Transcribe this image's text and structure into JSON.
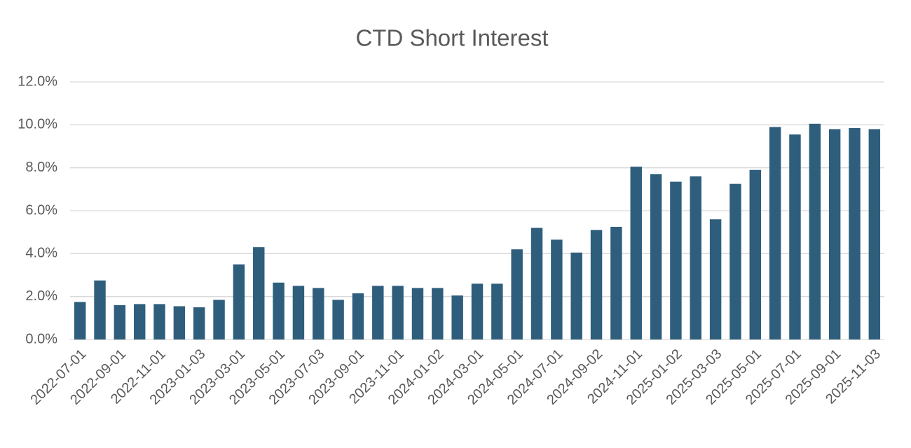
{
  "chart_data": {
    "type": "bar",
    "title": "CTD Short Interest",
    "categories": [
      "2022-07-01",
      null,
      "2022-09-01",
      null,
      "2022-11-01",
      null,
      "2023-01-03",
      null,
      "2023-03-01",
      null,
      "2023-05-01",
      null,
      "2023-07-03",
      null,
      "2023-09-01",
      null,
      "2023-11-01",
      null,
      "2024-01-02",
      null,
      "2024-03-01",
      null,
      "2024-05-01",
      null,
      "2024-07-01",
      null,
      "2024-09-02",
      null,
      "2024-11-01",
      null,
      "2025-01-02",
      null,
      "2025-03-03",
      null,
      "2025-05-01",
      null,
      "2025-07-01",
      null,
      "2025-09-01",
      null,
      "2025-11-03"
    ],
    "values": [
      1.75,
      2.75,
      1.6,
      1.65,
      1.65,
      1.55,
      1.5,
      1.85,
      3.5,
      4.3,
      2.65,
      2.5,
      2.4,
      1.85,
      2.15,
      2.5,
      2.5,
      2.4,
      2.4,
      2.05,
      2.6,
      2.6,
      4.2,
      5.2,
      4.65,
      4.05,
      5.1,
      5.25,
      8.05,
      7.7,
      7.35,
      7.6,
      5.6,
      7.25,
      7.9,
      9.9,
      9.55,
      10.05,
      9.8,
      9.85,
      9.8
    ],
    "color": "#2f5e7d",
    "ylim": [
      0,
      12
    ],
    "yticks": [
      {
        "value": 0,
        "label": "0.0%"
      },
      {
        "value": 2,
        "label": "2.0%"
      },
      {
        "value": 4,
        "label": "4.0%"
      },
      {
        "value": 6,
        "label": "6.0%"
      },
      {
        "value": 8,
        "label": "8.0%"
      },
      {
        "value": 10,
        "label": "10.0%"
      },
      {
        "value": 12,
        "label": "12.0%"
      }
    ],
    "grid": true
  }
}
